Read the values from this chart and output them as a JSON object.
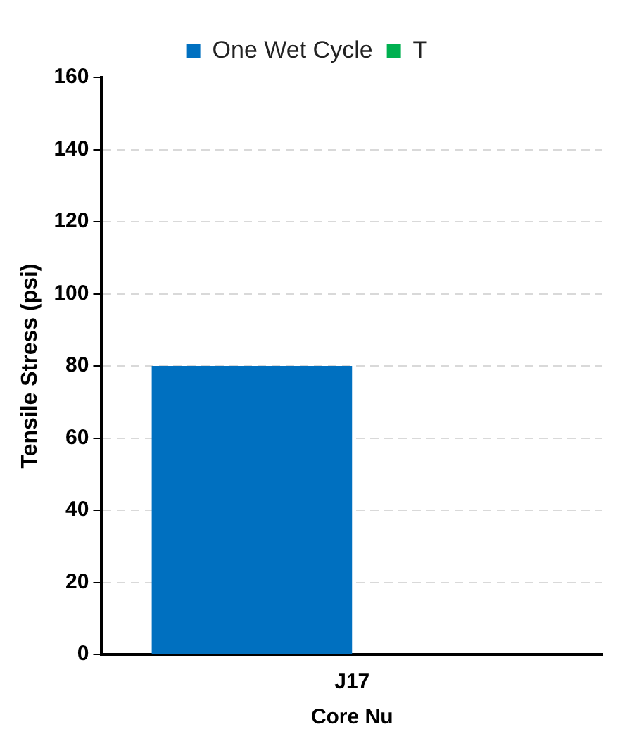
{
  "chart_data": {
    "type": "bar",
    "xlabel": "Core Nu",
    "ylabel": "Tensile Stress (psi)",
    "categories": [
      "J17"
    ],
    "series": [
      {
        "name": "One Wet Cycle",
        "color": "#0070c0",
        "values": [
          80
        ]
      },
      {
        "name": "T",
        "color": "#00b050",
        "values": [
          null
        ]
      }
    ],
    "ylim": [
      0,
      160
    ],
    "yticks": [
      0,
      20,
      40,
      60,
      80,
      100,
      120,
      140,
      160
    ],
    "grid": "y",
    "legend": "top"
  }
}
